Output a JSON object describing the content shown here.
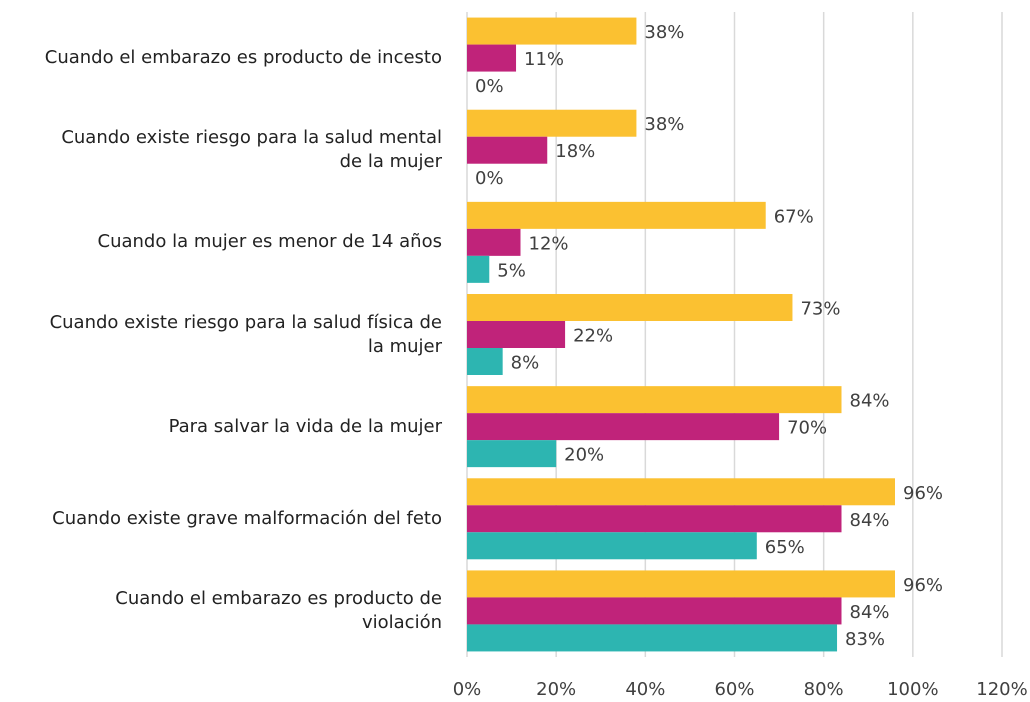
{
  "chart_data": {
    "type": "bar",
    "orientation": "horizontal",
    "categories": [
      "Cuando el embarazo es producto de incesto",
      "Cuando existe riesgo para la salud mental\nde la mujer",
      "Cuando la mujer es menor de 14 años",
      "Cuando existe riesgo para la salud física de\nla mujer",
      "Para salvar la vida de la mujer",
      "Cuando existe grave malformación del feto",
      "Cuando el embarazo es producto de\nviolación"
    ],
    "series": [
      {
        "color": "#FBC131",
        "values": [
          38,
          38,
          67,
          73,
          84,
          96,
          96
        ],
        "value_labels": [
          "38%",
          "38%",
          "67%",
          "73%",
          "84%",
          "96%",
          "96%"
        ]
      },
      {
        "color": "#C0237A",
        "values": [
          11,
          18,
          12,
          22,
          70,
          84,
          84
        ],
        "value_labels": [
          "11%",
          "18%",
          "12%",
          "22%",
          "70%",
          "84%",
          "84%"
        ]
      },
      {
        "color": "#2DB5B1",
        "values": [
          0,
          0,
          5,
          8,
          20,
          65,
          83
        ],
        "value_labels": [
          "0%",
          "0%",
          "5%",
          "8%",
          "20%",
          "65%",
          "83%"
        ]
      }
    ],
    "xlim": [
      0,
      120
    ],
    "xticks": [
      {
        "value": 0,
        "label": "0%"
      },
      {
        "value": 20,
        "label": "20%"
      },
      {
        "value": 40,
        "label": "40%"
      },
      {
        "value": 60,
        "label": "60%"
      },
      {
        "value": 80,
        "label": "80%"
      },
      {
        "value": 100,
        "label": "100%"
      },
      {
        "value": 120,
        "label": "120%"
      }
    ],
    "grid": true
  }
}
